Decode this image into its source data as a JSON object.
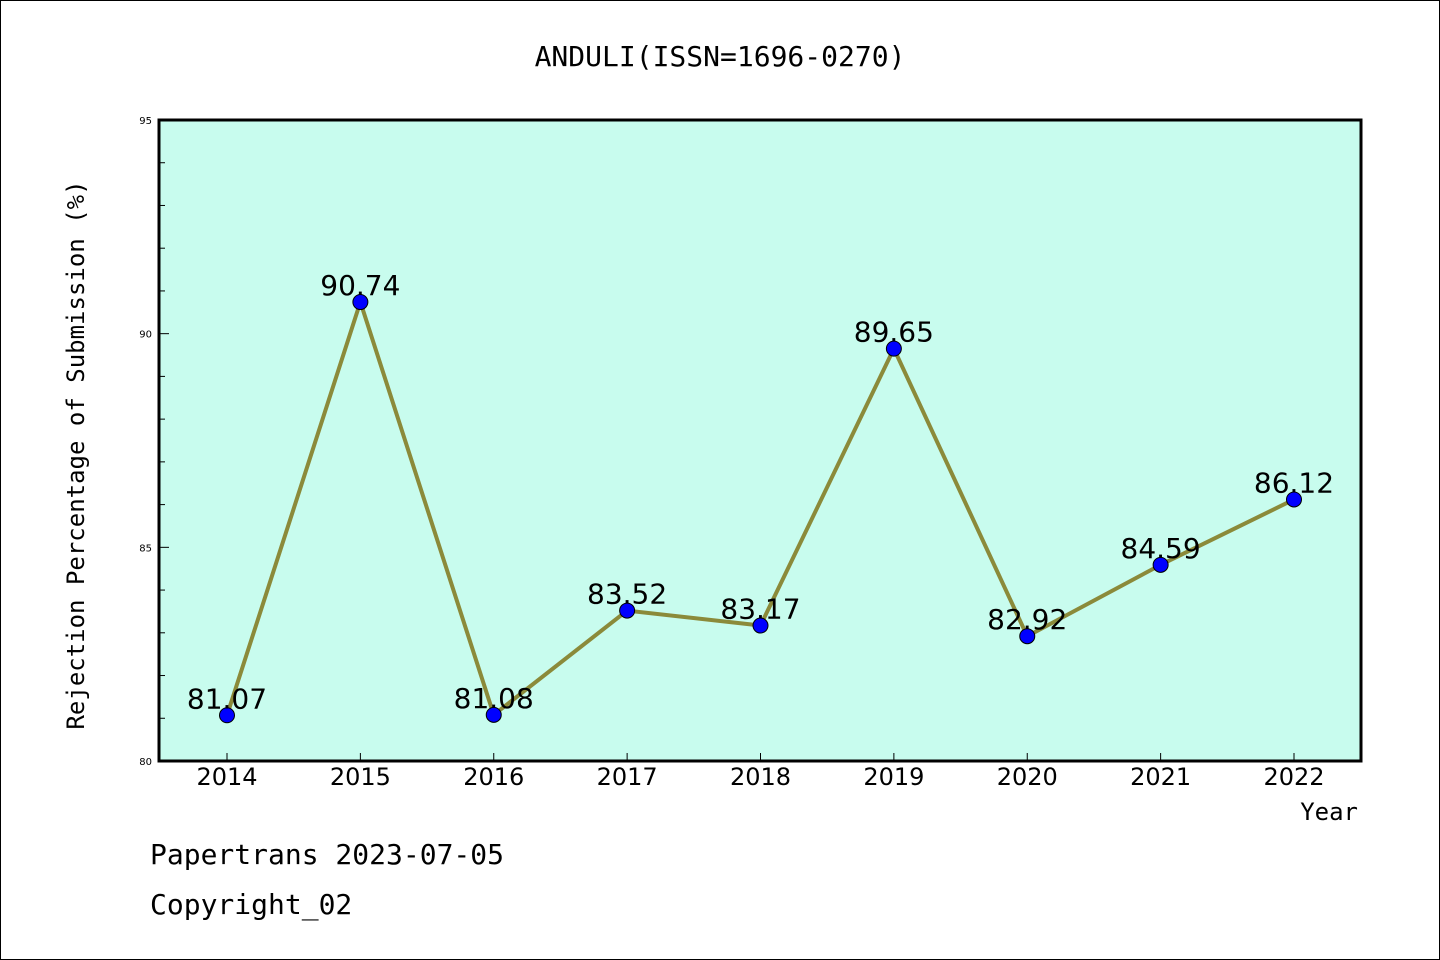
{
  "chart_data": {
    "type": "line",
    "title": "ANDULI(ISSN=1696-0270)",
    "xlabel": "Year",
    "ylabel": "Rejection Percentage of Submission (%)",
    "categories": [
      "2014",
      "2015",
      "2016",
      "2017",
      "2018",
      "2019",
      "2020",
      "2021",
      "2022"
    ],
    "series": [
      {
        "values": [
          81.07,
          90.74,
          81.08,
          83.52,
          83.17,
          89.65,
          82.92,
          84.59,
          86.12
        ],
        "labels": [
          "81.07",
          "90.74",
          "81.08",
          "83.52",
          "83.17",
          "89.65",
          "82.92",
          "84.59",
          "86.12"
        ]
      }
    ],
    "ylim": [
      80,
      95
    ],
    "yticks": [
      "80",
      "85",
      "90",
      "95"
    ],
    "grid": false,
    "colors": {
      "plot_background": "#c8fcee",
      "line": "#8b8a3a",
      "marker": "#0000ff"
    }
  },
  "footer": {
    "line1": "Papertrans 2023-07-05",
    "line2": "Copyright_02"
  }
}
